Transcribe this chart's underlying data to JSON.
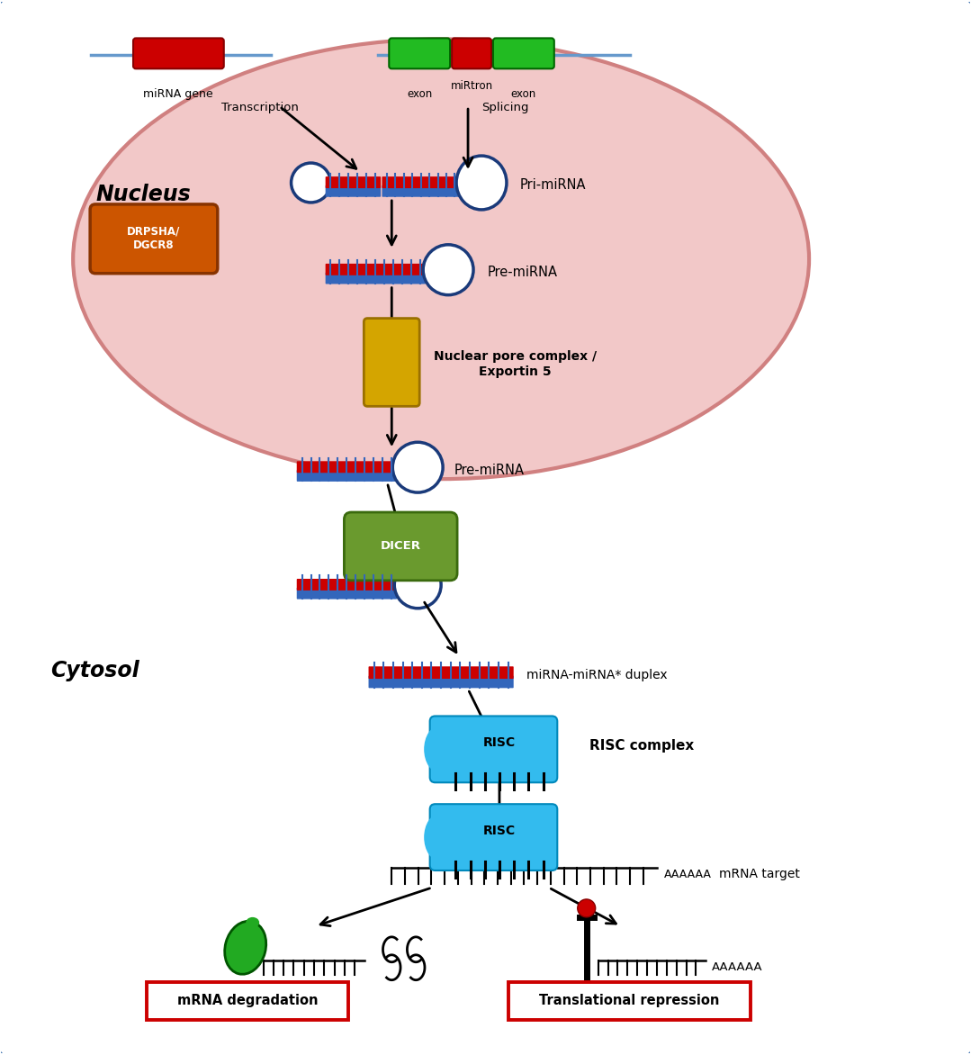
{
  "bg_color": "#ffffff",
  "outer_border_color": "#4a7ab5",
  "nucleus_fill": "#f2c8c8",
  "nucleus_border": "#d08080",
  "nucleus_label": "Nucleus",
  "cytosol_label": "Cytosol",
  "mirna_gene_label": "miRNA gene",
  "mirtron_label": "miRtron",
  "exon_label": "exon",
  "transcription_label": "Transcription",
  "splicing_label": "Splicing",
  "pri_mirna_label": "Pri-miRNA",
  "pre_mirna_label": "Pre-miRNA",
  "drpsha_label": "DRPSHA/\nDGCR8",
  "nuclear_pore_label": "Nuclear pore complex /\nExportin 5",
  "dicer_label": "DICER",
  "duplex_label": "miRNA-miRNA* duplex",
  "risc_label": "RISC",
  "risc_complex_label": "RISC complex",
  "mrna_target_label": "mRNA target",
  "aaaaaa_label": "AAAAAA",
  "degradation_label": "mRNA degradation",
  "repression_label": "Translational repression",
  "red": "#cc0000",
  "dark_green": "#4a7a1e",
  "blue_dark": "#1a3a7a",
  "blue_medium": "#2255aa",
  "blue_strand": "#3366bb",
  "cyan_blue": "#00aadd",
  "sky_blue": "#33bbee",
  "gold": "#d4a500",
  "orange": "#cc5500",
  "bright_green": "#22aa22",
  "black": "#000000",
  "white": "#ffffff"
}
